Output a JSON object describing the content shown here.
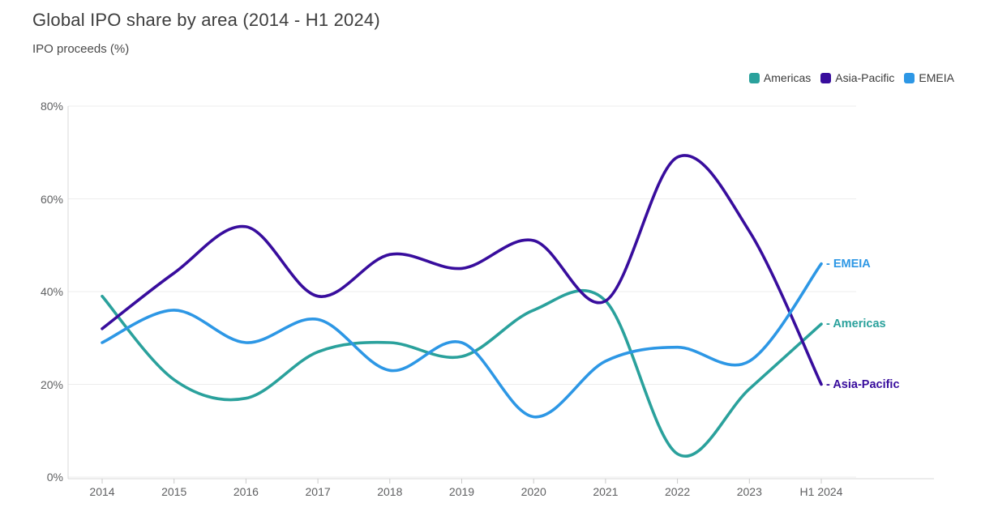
{
  "header": {
    "title": "Global IPO share by area (2014 - H1 2024)",
    "subtitle": "IPO proceeds (%)"
  },
  "legend": {
    "position": "top-right",
    "items": [
      {
        "label": "Americas",
        "color": "#2aa19c"
      },
      {
        "label": "Asia-Pacific",
        "color": "#380d9d"
      },
      {
        "label": "EMEIA",
        "color": "#2d97e5"
      }
    ]
  },
  "chart_data": {
    "type": "line",
    "title": "Global IPO share by area (2014 - H1 2024)",
    "ylabel": "IPO proceeds (%)",
    "xlabel": "",
    "categories": [
      "2014",
      "2015",
      "2016",
      "2017",
      "2018",
      "2019",
      "2020",
      "2021",
      "2022",
      "2023",
      "H1 2024"
    ],
    "series": [
      {
        "name": "Americas",
        "color": "#2aa19c",
        "values": [
          39,
          21,
          17,
          27,
          29,
          26,
          36,
          38,
          5,
          19,
          33
        ]
      },
      {
        "name": "Asia-Pacific",
        "color": "#380d9d",
        "values": [
          32,
          44,
          54,
          39,
          48,
          45,
          51,
          38,
          69,
          53,
          20
        ]
      },
      {
        "name": "EMEIA",
        "color": "#2d97e5",
        "values": [
          29,
          36,
          29,
          34,
          23,
          29,
          13,
          25,
          28,
          25,
          46
        ]
      }
    ],
    "ylim": [
      0,
      80
    ],
    "ytick_labels": [
      "0%",
      "20%",
      "40%",
      "60%",
      "80%"
    ],
    "ytick_values": [
      0,
      20,
      40,
      60,
      80
    ],
    "grid": "horizontal",
    "legend_position": "top-right",
    "curve": "smooth-spline"
  },
  "end_labels": [
    {
      "text": "- EMEIA",
      "series": "EMEIA"
    },
    {
      "text": "- Americas",
      "series": "Americas"
    },
    {
      "text": "- Asia-Pacific",
      "series": "Asia-Pacific"
    }
  ],
  "colors": {
    "gridline": "#ececec",
    "axis_line": "#d9d9d9",
    "tick_mark": "#c9c9c9",
    "axis_text": "#5f6062",
    "title_text": "#3d3d3d"
  }
}
